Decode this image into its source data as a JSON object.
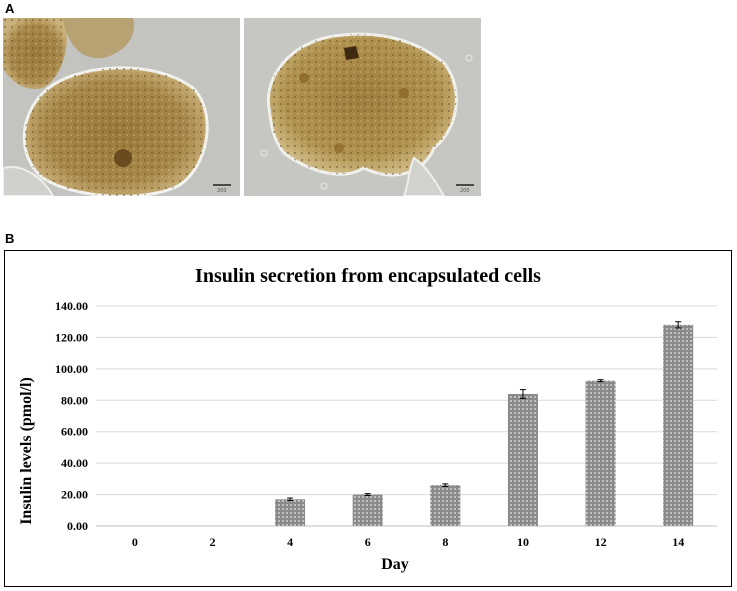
{
  "panels": {
    "a_label": "A",
    "b_label": "B"
  },
  "micrographs": [
    {
      "name": "encapsulated-cell-micrograph-left",
      "scale_bar_text": "200"
    },
    {
      "name": "encapsulated-cell-micrograph-right",
      "scale_bar_text": "200"
    }
  ],
  "colors": {
    "bar_fill": "#8a8a8a",
    "bar_dots": "#e6e6e6",
    "gridline": "#d9d9d9"
  },
  "chart_data": {
    "type": "bar",
    "title": "Insulin secretion from encapsulated cells",
    "xlabel": "Day",
    "ylabel": "Insulin levels (pmol/l)",
    "categories": [
      "0",
      "2",
      "4",
      "6",
      "8",
      "10",
      "12",
      "14"
    ],
    "values": [
      0,
      0,
      17.0,
      20.0,
      26.0,
      84.0,
      92.5,
      128.0
    ],
    "errors": [
      0,
      0,
      0.8,
      0.6,
      0.8,
      2.8,
      0.6,
      2.0
    ],
    "ylim": [
      0,
      140
    ],
    "yticks": [
      "0.00",
      "20.00",
      "40.00",
      "60.00",
      "80.00",
      "100.00",
      "120.00",
      "140.00"
    ],
    "grid": true,
    "legend": "none"
  }
}
